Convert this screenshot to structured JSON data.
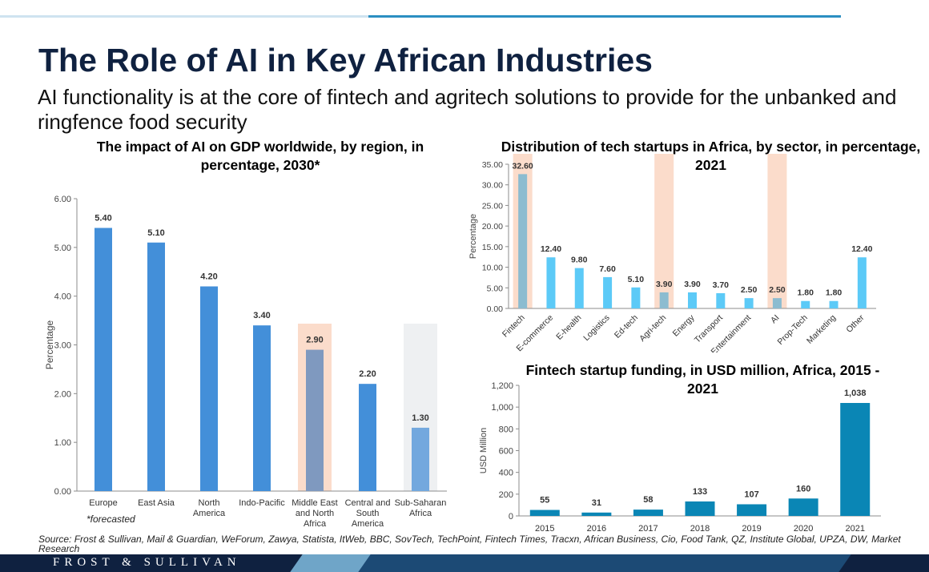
{
  "title": "The Role of AI in Key African Industries",
  "subtitle": "AI functionality is at the core of fintech and agritech solutions to provide for the unbanked and ringfence food security",
  "note": "*forecasted",
  "source": "Source: Frost & Sullivan, Mail & Guardian, WeForum, Zawya, Statista, ItWeb, BBC, SovTech, TechPoint, Fintech Times, Tracxn, African Business, Cio, Food Tank, QZ, Institute Global, UPZA, DW, Market Research",
  "brand": "FROST & SULLIVAN",
  "chart_data": [
    {
      "id": "gdp",
      "type": "bar",
      "title": "The impact of AI on GDP worldwide, by region, in percentage, 2030*",
      "xlabel": "",
      "ylabel": "Percentage",
      "ylim": [
        0,
        6
      ],
      "yticks": [
        "0.00",
        "1.00",
        "2.00",
        "3.00",
        "4.00",
        "5.00",
        "6.00"
      ],
      "grid": false,
      "categories": [
        "Europe",
        "East Asia",
        "North America",
        "Indo-Pacific",
        "Middle East and North Africa",
        "Central and South America",
        "Sub-Saharan Africa"
      ],
      "values": [
        5.4,
        5.1,
        4.2,
        3.4,
        2.9,
        2.2,
        1.3
      ],
      "labels": [
        "5.40",
        "5.10",
        "4.20",
        "3.40",
        "2.90",
        "2.20",
        "1.30"
      ],
      "colors": [
        "#438fd9",
        "#438fd9",
        "#438fd9",
        "#438fd9",
        "#7f99bf",
        "#438fd9",
        "#73a8de"
      ],
      "highlights": [
        {
          "index": 4,
          "color": "#fbdccb"
        },
        {
          "index": 6,
          "color": "#eef0f2"
        }
      ]
    },
    {
      "id": "sectors",
      "type": "bar",
      "title": "Distribution of tech startups in Africa, by sector, in percentage, 2021",
      "xlabel": "",
      "ylabel": "Percentage",
      "ylim": [
        0,
        35
      ],
      "yticks": [
        "0.00",
        "5.00",
        "10.00",
        "15.00",
        "20.00",
        "25.00",
        "30.00",
        "35.00"
      ],
      "grid": false,
      "categories": [
        "Fintech",
        "E-commerce",
        "E-health",
        "Logistics",
        "Ed-tech",
        "Agri-tech",
        "Energy",
        "Transport",
        "Entertainment",
        "AI",
        "Prop-Tech",
        "Marketing",
        "Other"
      ],
      "values": [
        32.6,
        12.4,
        9.8,
        7.6,
        5.1,
        3.9,
        3.9,
        3.7,
        2.5,
        2.5,
        1.8,
        1.8,
        12.4
      ],
      "labels": [
        "32.60",
        "12.40",
        "9.80",
        "7.60",
        "5.10",
        "3.90",
        "3.90",
        "3.70",
        "2.50",
        "2.50",
        "1.80",
        "1.80",
        "12.40"
      ],
      "colors": [
        "#8cbcd0",
        "#5ccaf7",
        "#5ccaf7",
        "#5ccaf7",
        "#5ccaf7",
        "#8cbcd0",
        "#5ccaf7",
        "#5ccaf7",
        "#5ccaf7",
        "#8cbcd0",
        "#5ccaf7",
        "#5ccaf7",
        "#5ccaf7"
      ],
      "highlights": [
        {
          "index": 0,
          "color": "#fbdccb"
        },
        {
          "index": 5,
          "color": "#fbdccb"
        },
        {
          "index": 9,
          "color": "#fbdccb"
        }
      ]
    },
    {
      "id": "funding",
      "type": "bar",
      "title": "Fintech startup funding, in USD million, Africa, 2015 - 2021",
      "xlabel": "",
      "ylabel": "USD Million",
      "ylim": [
        0,
        1200
      ],
      "yticks": [
        "0",
        "200",
        "400",
        "600",
        "800",
        "1,000",
        "1,200"
      ],
      "grid": false,
      "categories": [
        "2015",
        "2016",
        "2017",
        "2018",
        "2019",
        "2020",
        "2021"
      ],
      "values": [
        55,
        31,
        58,
        133,
        107,
        160,
        1038
      ],
      "labels": [
        "55",
        "31",
        "58",
        "133",
        "107",
        "160",
        "1,038"
      ],
      "colors": [
        "#0a86b5",
        "#0a86b5",
        "#0a86b5",
        "#0a86b5",
        "#0a86b5",
        "#0a86b5",
        "#0a86b5"
      ],
      "highlights": []
    }
  ]
}
